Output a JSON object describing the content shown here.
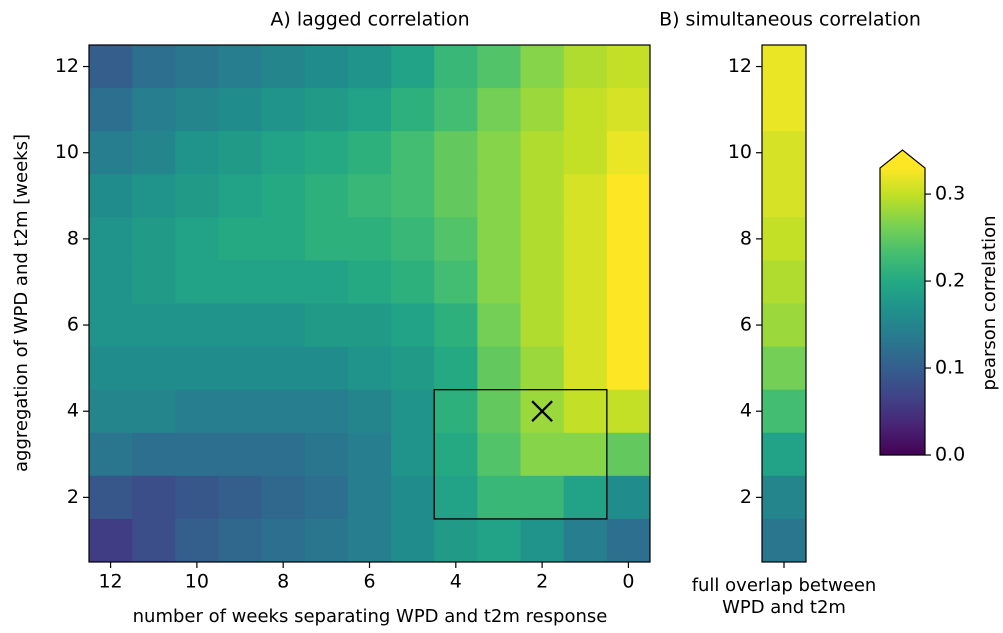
{
  "chart_data": [
    {
      "type": "heatmap",
      "title": "A) lagged correlation",
      "xlabel": "number of weeks separating WPD and t2m response",
      "ylabel": "aggregation of WPD and t2m [weeks]",
      "x": [
        12,
        11,
        10,
        9,
        8,
        7,
        6,
        5,
        4,
        3,
        2,
        1,
        0
      ],
      "y": [
        12,
        11,
        10,
        9,
        8,
        7,
        6,
        5,
        4,
        3,
        2,
        1
      ],
      "values": [
        [
          0.1,
          0.12,
          0.13,
          0.14,
          0.15,
          0.16,
          0.17,
          0.19,
          0.22,
          0.24,
          0.27,
          0.29,
          0.3
        ],
        [
          0.12,
          0.14,
          0.15,
          0.16,
          0.17,
          0.18,
          0.19,
          0.21,
          0.23,
          0.26,
          0.28,
          0.3,
          0.31
        ],
        [
          0.14,
          0.15,
          0.17,
          0.18,
          0.19,
          0.2,
          0.21,
          0.23,
          0.25,
          0.27,
          0.29,
          0.3,
          0.32
        ],
        [
          0.16,
          0.17,
          0.18,
          0.19,
          0.2,
          0.21,
          0.22,
          0.23,
          0.25,
          0.27,
          0.29,
          0.31,
          0.33
        ],
        [
          0.17,
          0.18,
          0.19,
          0.2,
          0.2,
          0.21,
          0.21,
          0.22,
          0.24,
          0.27,
          0.29,
          0.31,
          0.33
        ],
        [
          0.17,
          0.18,
          0.19,
          0.19,
          0.19,
          0.19,
          0.2,
          0.21,
          0.23,
          0.27,
          0.29,
          0.31,
          0.33
        ],
        [
          0.17,
          0.17,
          0.17,
          0.17,
          0.17,
          0.18,
          0.18,
          0.19,
          0.21,
          0.26,
          0.29,
          0.31,
          0.33
        ],
        [
          0.16,
          0.16,
          0.16,
          0.16,
          0.16,
          0.16,
          0.17,
          0.18,
          0.2,
          0.25,
          0.28,
          0.31,
          0.33
        ],
        [
          0.15,
          0.15,
          0.14,
          0.14,
          0.14,
          0.14,
          0.15,
          0.17,
          0.21,
          0.25,
          0.28,
          0.3,
          0.3
        ],
        [
          0.13,
          0.12,
          0.12,
          0.12,
          0.12,
          0.13,
          0.14,
          0.17,
          0.2,
          0.24,
          0.27,
          0.27,
          0.25
        ],
        [
          0.09,
          0.08,
          0.09,
          0.1,
          0.11,
          0.12,
          0.14,
          0.16,
          0.19,
          0.22,
          0.22,
          0.19,
          0.16
        ],
        [
          0.06,
          0.08,
          0.1,
          0.11,
          0.12,
          0.13,
          0.14,
          0.16,
          0.18,
          0.19,
          0.17,
          0.14,
          0.12
        ]
      ],
      "xlim": [
        12.5,
        -0.5
      ],
      "xticks": [
        12,
        10,
        8,
        6,
        4,
        2,
        0
      ],
      "ylim": [
        0.5,
        12.5
      ],
      "yticks": [
        2,
        4,
        6,
        8,
        10,
        12
      ],
      "highlight": {
        "x": [
          4.5,
          0.5
        ],
        "y": [
          1.5,
          4.5
        ]
      },
      "marker": {
        "x": 2,
        "y": 4
      },
      "colormap": "viridis",
      "clim": [
        0,
        0.33
      ]
    },
    {
      "type": "heatmap-column",
      "title": "B) simultaneous correlation",
      "xlabel": [
        "full overlap between",
        "WPD and t2m"
      ],
      "y": [
        12,
        11,
        10,
        9,
        8,
        7,
        6,
        5,
        4,
        3,
        2,
        1
      ],
      "values": [
        0.32,
        0.32,
        0.31,
        0.31,
        0.3,
        0.29,
        0.28,
        0.26,
        0.23,
        0.19,
        0.15,
        0.13
      ],
      "ylim": [
        0.5,
        12.5
      ],
      "yticks": [
        2,
        4,
        6,
        8,
        10,
        12
      ],
      "colormap": "viridis",
      "clim": [
        0,
        0.33
      ],
      "colorbar": {
        "label": "pearson correlation",
        "ticks": [
          0.0,
          0.1,
          0.2,
          0.3
        ],
        "extend": "max"
      }
    }
  ]
}
